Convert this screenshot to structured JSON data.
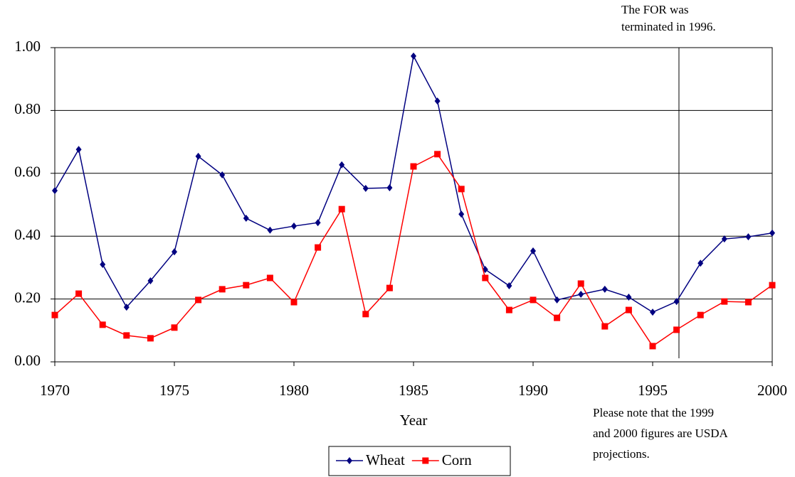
{
  "chart_data": {
    "type": "line",
    "x_label": "Year",
    "x": [
      1970,
      1971,
      1972,
      1973,
      1974,
      1975,
      1976,
      1977,
      1978,
      1979,
      1980,
      1981,
      1982,
      1983,
      1984,
      1985,
      1986,
      1987,
      1988,
      1989,
      1990,
      1991,
      1992,
      1993,
      1994,
      1995,
      1996,
      1997,
      1998,
      1999,
      2000
    ],
    "series": [
      {
        "name": "Wheat",
        "color": "#000080",
        "marker": "diamond",
        "values": [
          0.545,
          0.676,
          0.31,
          0.174,
          0.258,
          0.35,
          0.654,
          0.595,
          0.457,
          0.419,
          0.432,
          0.443,
          0.627,
          0.552,
          0.554,
          0.973,
          0.83,
          0.47,
          0.294,
          0.242,
          0.353,
          0.197,
          0.215,
          0.231,
          0.206,
          0.158,
          0.192,
          0.314,
          0.391,
          0.398,
          0.41
        ]
      },
      {
        "name": "Corn",
        "color": "#ff0000",
        "marker": "square",
        "values": [
          0.149,
          0.217,
          0.118,
          0.084,
          0.075,
          0.109,
          0.197,
          0.231,
          0.244,
          0.267,
          0.19,
          0.364,
          0.486,
          0.152,
          0.235,
          0.622,
          0.661,
          0.55,
          0.267,
          0.165,
          0.197,
          0.14,
          0.249,
          0.113,
          0.165,
          0.05,
          0.102,
          0.149,
          0.192,
          0.19,
          0.244
        ]
      }
    ],
    "xlim": [
      1970,
      2000
    ],
    "xticks": [
      1970,
      1975,
      1980,
      1985,
      1990,
      1995,
      2000
    ],
    "ylim": [
      0,
      1
    ],
    "yticks": [
      {
        "value": 0,
        "label": "0.00"
      },
      {
        "value": 0.2,
        "label": "0.20"
      },
      {
        "value": 0.4,
        "label": "0.40"
      },
      {
        "value": 0.6,
        "label": "0.60"
      },
      {
        "value": 0.8,
        "label": "0.80"
      },
      {
        "value": 1,
        "label": "1.00"
      }
    ],
    "grid": true,
    "legend": "bottom",
    "marker_line": {
      "x": 1996.1,
      "note": [
        "The FOR was",
        "terminated in 1996."
      ]
    },
    "footnote": [
      "Please note that the 1999",
      "and 2000 figures are USDA",
      "projections."
    ]
  }
}
